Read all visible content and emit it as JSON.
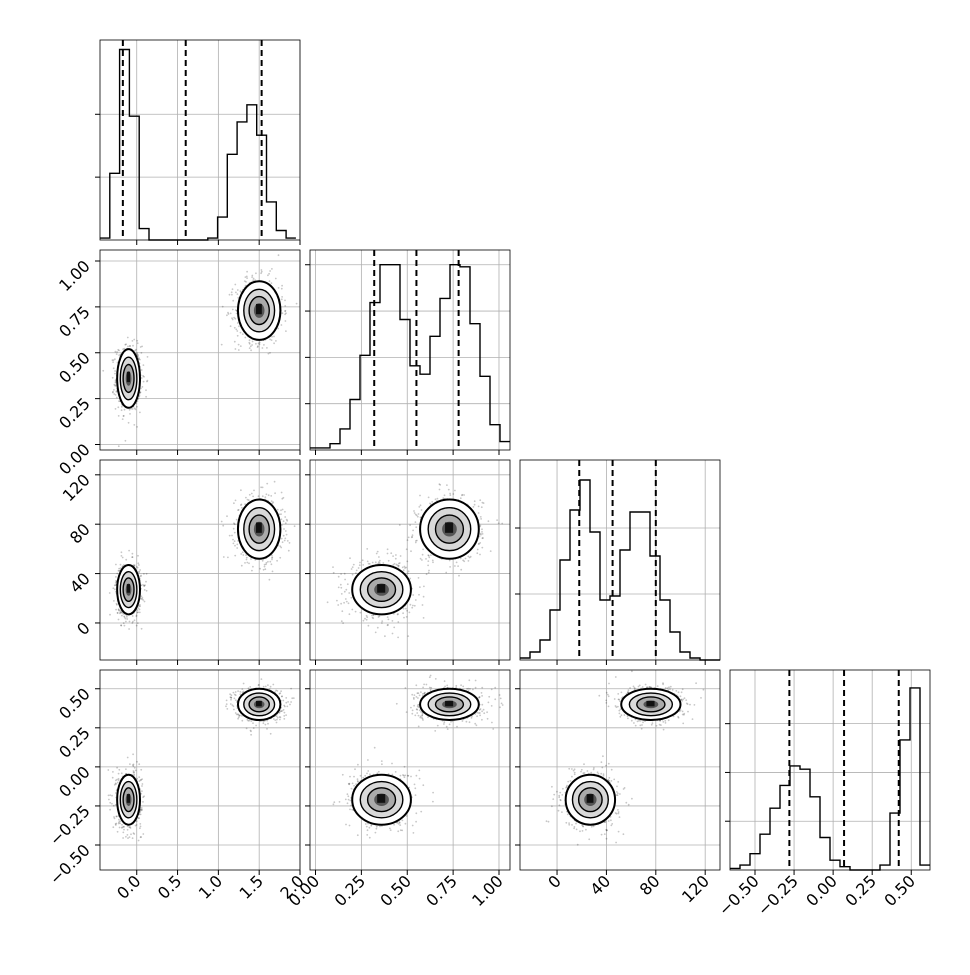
{
  "chart_data": {
    "type": "corner",
    "parameters": [
      {
        "id": "p0",
        "range": [
          -0.45,
          2.0
        ],
        "ticks": [
          0.0,
          0.5,
          1.0,
          1.5,
          2.0
        ],
        "tick_labels": [
          "0.0",
          "0.5",
          "1.0",
          "1.5",
          "2.0"
        ]
      },
      {
        "id": "p1",
        "range": [
          -0.03,
          1.06
        ],
        "ticks": [
          0.0,
          0.25,
          0.5,
          0.75,
          1.0
        ],
        "tick_labels": [
          "0.00",
          "0.25",
          "0.50",
          "0.75",
          "1.00"
        ]
      },
      {
        "id": "p2",
        "range": [
          -30,
          132
        ],
        "ticks": [
          0,
          40,
          80,
          120
        ],
        "tick_labels": [
          "0",
          "40",
          "80",
          "120"
        ]
      },
      {
        "id": "p3",
        "range": [
          -0.66,
          0.62
        ],
        "ticks": [
          -0.5,
          -0.25,
          0.0,
          0.25,
          0.5
        ],
        "tick_labels": [
          "−0.50",
          "−0.25",
          "0.00",
          "0.25",
          "0.50"
        ]
      }
    ],
    "histograms": [
      {
        "param": "p0",
        "bin_start": -0.45,
        "bin_width": 0.12,
        "counts": [
          1,
          35,
          100,
          65,
          6,
          0,
          0,
          0,
          0,
          0,
          0,
          1,
          12,
          45,
          62,
          71,
          55,
          20,
          5,
          1
        ],
        "ylim": [
          0,
          105
        ],
        "yticks": [
          33,
          66
        ],
        "quantile_lines": [
          -0.17,
          0.6,
          1.53
        ]
      },
      {
        "param": "p1",
        "bin_start": -0.03,
        "bin_width": 0.0545,
        "counts": [
          1,
          1,
          3,
          10,
          24,
          45,
          70,
          88,
          88,
          62,
          40,
          36,
          54,
          72,
          88,
          87,
          60,
          35,
          12,
          4
        ],
        "ylim": [
          0,
          95
        ],
        "yticks": [
          22,
          44,
          66,
          88
        ],
        "quantile_lines": [
          0.32,
          0.55,
          0.78
        ]
      },
      {
        "param": "p2",
        "bin_start": -30,
        "bin_width": 8.1,
        "counts": [
          1,
          4,
          10,
          25,
          50,
          75,
          90,
          64,
          30,
          32,
          55,
          74,
          74,
          52,
          30,
          14,
          4,
          1,
          0,
          0
        ],
        "ylim": [
          0,
          100
        ],
        "yticks": [
          33,
          66
        ],
        "quantile_lines": [
          18,
          45,
          80
        ]
      },
      {
        "param": "p3",
        "bin_start": -0.66,
        "bin_width": 0.064,
        "counts": [
          1,
          3,
          10,
          22,
          38,
          52,
          64,
          62,
          45,
          20,
          6,
          2,
          0,
          0,
          0,
          3,
          35,
          80,
          112,
          3
        ],
        "ylim": [
          0,
          123
        ],
        "yticks": [
          30,
          60,
          90
        ],
        "quantile_lines": [
          -0.28,
          0.07,
          0.42
        ]
      }
    ],
    "clusters": [
      {
        "mean": [
          -0.1,
          0.36,
          27,
          -0.21
        ],
        "sd": [
          0.07,
          0.08,
          10,
          0.08
        ]
      },
      {
        "mean": [
          1.5,
          0.73,
          76,
          0.4
        ],
        "sd": [
          0.13,
          0.08,
          12,
          0.05
        ]
      }
    ],
    "grid": true
  }
}
